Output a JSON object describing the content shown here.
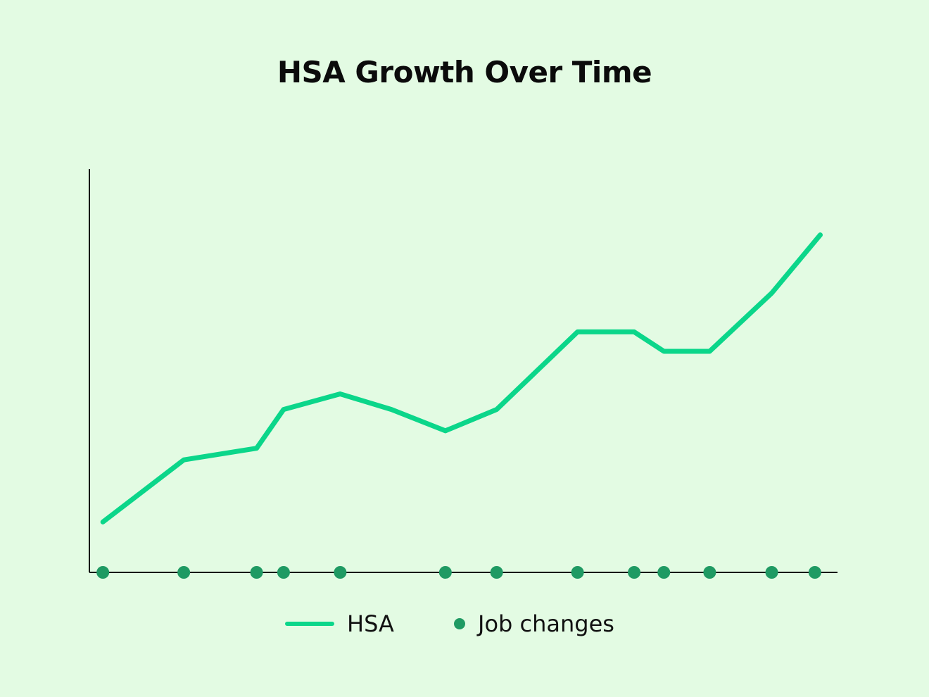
{
  "colors": {
    "background": "#e3fbe3",
    "line": "#0bd68a",
    "marker": "#1f9a63",
    "axis": "#111111"
  },
  "chart_data": {
    "type": "line",
    "title": "HSA Growth Over Time",
    "xlabel": "",
    "ylabel": "",
    "grid": false,
    "axis_ticks_labeled": false,
    "legend_position": "bottom-center",
    "legend": [
      "HSA",
      "Job changes"
    ],
    "series": [
      {
        "name": "HSA",
        "x": [
          0.5,
          3.5,
          6.2,
          7.2,
          9.3,
          11.2,
          13.2,
          15.1,
          18.1,
          20.2,
          21.3,
          23.0,
          25.3,
          27.1
        ],
        "y": [
          13,
          29,
          32,
          42,
          46,
          42,
          36.5,
          42,
          62,
          62,
          57,
          57,
          72,
          87
        ]
      },
      {
        "name": "Job changes",
        "type": "scatter",
        "x": [
          0.5,
          3.5,
          6.2,
          7.2,
          9.3,
          13.2,
          15.1,
          18.1,
          20.2,
          21.3,
          23.0,
          25.3,
          26.9
        ],
        "y": [
          0,
          0,
          0,
          0,
          0,
          0,
          0,
          0,
          0,
          0,
          0,
          0,
          0
        ]
      }
    ],
    "xlim": [
      0,
      28
    ],
    "ylim": [
      0,
      104
    ]
  }
}
